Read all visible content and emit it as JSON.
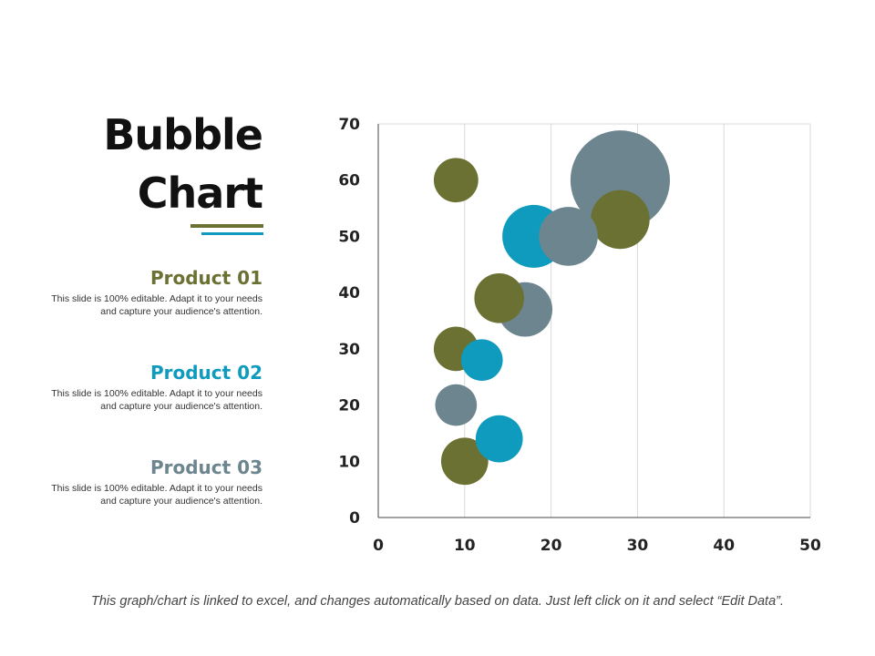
{
  "title": {
    "line1": "Bubble",
    "line2": "Chart"
  },
  "colors": {
    "product01": "#6b7132",
    "product02": "#0f9bbd",
    "product03": "#6d858e",
    "grid": "#d9d9d9",
    "axis": "#444444"
  },
  "products": [
    {
      "name": "Product 01",
      "desc1": "This slide is 100% editable. Adapt it to your needs",
      "desc2": "and capture your audience's attention."
    },
    {
      "name": "Product 02",
      "desc1": "This slide is 100% editable. Adapt it to your needs",
      "desc2": "and capture your audience's attention."
    },
    {
      "name": "Product 03",
      "desc1": "This slide is 100% editable. Adapt it to your needs",
      "desc2": "and capture your audience's attention."
    }
  ],
  "footnote": "This graph/chart is linked to excel, and changes automatically based on data. Just left click on it and select “Edit Data”.",
  "chart_data": {
    "type": "scatter",
    "subtype": "bubble",
    "xlim": [
      0,
      50
    ],
    "ylim": [
      0,
      70
    ],
    "xticks": [
      0,
      10,
      20,
      30,
      40,
      50
    ],
    "yticks": [
      0,
      10,
      20,
      30,
      40,
      50,
      60,
      70
    ],
    "grid": "vertical",
    "series": [
      {
        "name": "Product 01",
        "color": "#6b7132",
        "points": [
          {
            "x": 9,
            "y": 60,
            "size": 4
          },
          {
            "x": 14,
            "y": 39,
            "size": 5
          },
          {
            "x": 9,
            "y": 30,
            "size": 4
          },
          {
            "x": 10,
            "y": 10,
            "size": 4.5
          },
          {
            "x": 28,
            "y": 53,
            "size": 7
          }
        ]
      },
      {
        "name": "Product 02",
        "color": "#0f9bbd",
        "points": [
          {
            "x": 18,
            "y": 50,
            "size": 8
          },
          {
            "x": 12,
            "y": 28,
            "size": 3.5
          },
          {
            "x": 14,
            "y": 14,
            "size": 4.5
          }
        ]
      },
      {
        "name": "Product 03",
        "color": "#6d858e",
        "points": [
          {
            "x": 28,
            "y": 60,
            "size": 20
          },
          {
            "x": 22,
            "y": 50,
            "size": 7
          },
          {
            "x": 17,
            "y": 37,
            "size": 6
          },
          {
            "x": 9,
            "y": 20,
            "size": 3.5
          }
        ]
      }
    ]
  }
}
